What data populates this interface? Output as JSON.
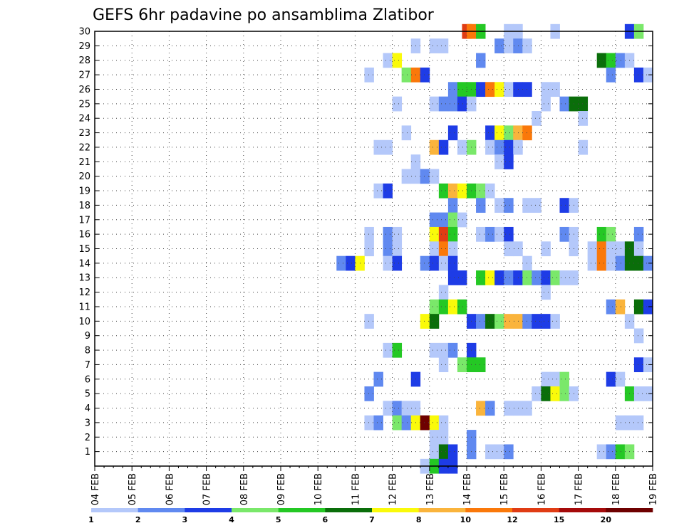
{
  "chart_data": {
    "type": "heatmap",
    "title": "GEFS 6hr padavine po ansamblima Zlatibor",
    "xlabel": "",
    "ylabel": "",
    "x_axis": {
      "start_day": 4,
      "end_day": 19,
      "tick_labels": [
        "04 FEB",
        "05 FEB",
        "06 FEB",
        "07 FEB",
        "08 FEB",
        "09 FEB",
        "10 FEB",
        "11 FEB",
        "12 FEB",
        "13 FEB",
        "14 FEB",
        "15 FEB",
        "16 FEB",
        "17 FEB",
        "18 FEB",
        "19 FEB"
      ],
      "grid": true
    },
    "y_axis": {
      "range": [
        0,
        30
      ],
      "tick_labels": [
        "1",
        "2",
        "3",
        "4",
        "5",
        "6",
        "7",
        "8",
        "9",
        "10",
        "11",
        "12",
        "13",
        "14",
        "15",
        "16",
        "17",
        "18",
        "19",
        "20",
        "21",
        "22",
        "23",
        "24",
        "25",
        "26",
        "27",
        "28",
        "29",
        "30"
      ],
      "grid": true
    },
    "color_scale": {
      "labels": [
        "1",
        "2",
        "3",
        "4",
        "5",
        "6",
        "7",
        "8",
        "10",
        "12",
        "15",
        "20"
      ],
      "colors": [
        "#b4c8fa",
        "#6089f0",
        "#1e3ce6",
        "#7ae86a",
        "#24c824",
        "#0a6e0a",
        "#fafa0a",
        "#fab43c",
        "#fa780a",
        "#e03c14",
        "#a50a0a",
        "#6e0000"
      ]
    },
    "cells": [
      {
        "y": 30,
        "x": 14.0,
        "level": 10
      },
      {
        "y": 30,
        "x": 14.125,
        "level": 9
      },
      {
        "y": 30,
        "x": 14.375,
        "level": 5
      },
      {
        "y": 30,
        "x": 15.125,
        "level": 1
      },
      {
        "y": 30,
        "x": 15.375,
        "level": 1
      },
      {
        "y": 30,
        "x": 16.375,
        "level": 1
      },
      {
        "y": 30,
        "x": 18.375,
        "level": 3
      },
      {
        "y": 30,
        "x": 18.625,
        "level": 4
      },
      {
        "y": 29,
        "x": 12.625,
        "level": 1
      },
      {
        "y": 29,
        "x": 13.125,
        "level": 1
      },
      {
        "y": 29,
        "x": 13.375,
        "level": 1
      },
      {
        "y": 29,
        "x": 14.875,
        "level": 2
      },
      {
        "y": 29,
        "x": 15.125,
        "level": 1
      },
      {
        "y": 29,
        "x": 15.375,
        "level": 2
      },
      {
        "y": 29,
        "x": 15.625,
        "level": 1
      },
      {
        "y": 28,
        "x": 11.875,
        "level": 1
      },
      {
        "y": 28,
        "x": 12.125,
        "level": 7
      },
      {
        "y": 28,
        "x": 14.375,
        "level": 2
      },
      {
        "y": 28,
        "x": 17.625,
        "level": 6
      },
      {
        "y": 28,
        "x": 17.875,
        "level": 5
      },
      {
        "y": 28,
        "x": 18.125,
        "level": 2
      },
      {
        "y": 28,
        "x": 18.375,
        "level": 1
      },
      {
        "y": 27,
        "x": 11.375,
        "level": 1
      },
      {
        "y": 27,
        "x": 12.375,
        "level": 4
      },
      {
        "y": 27,
        "x": 12.625,
        "level": 9
      },
      {
        "y": 27,
        "x": 12.875,
        "level": 3
      },
      {
        "y": 27,
        "x": 17.875,
        "level": 2
      },
      {
        "y": 27,
        "x": 18.625,
        "level": 3
      },
      {
        "y": 27,
        "x": 18.875,
        "level": 1
      },
      {
        "y": 26,
        "x": 13.625,
        "level": 2
      },
      {
        "y": 26,
        "x": 13.875,
        "level": 5
      },
      {
        "y": 26,
        "x": 14.125,
        "level": 5
      },
      {
        "y": 26,
        "x": 14.375,
        "level": 3
      },
      {
        "y": 26,
        "x": 14.625,
        "level": 9
      },
      {
        "y": 26,
        "x": 14.875,
        "level": 7
      },
      {
        "y": 26,
        "x": 15.125,
        "level": 1
      },
      {
        "y": 26,
        "x": 15.375,
        "level": 3
      },
      {
        "y": 26,
        "x": 15.625,
        "level": 3
      },
      {
        "y": 26,
        "x": 16.125,
        "level": 1
      },
      {
        "y": 26,
        "x": 16.375,
        "level": 1
      },
      {
        "y": 25,
        "x": 12.125,
        "level": 1
      },
      {
        "y": 25,
        "x": 13.125,
        "level": 1
      },
      {
        "y": 25,
        "x": 13.375,
        "level": 2
      },
      {
        "y": 25,
        "x": 13.625,
        "level": 2
      },
      {
        "y": 25,
        "x": 13.875,
        "level": 3
      },
      {
        "y": 25,
        "x": 14.125,
        "level": 1
      },
      {
        "y": 25,
        "x": 16.125,
        "level": 1
      },
      {
        "y": 25,
        "x": 16.625,
        "level": 2
      },
      {
        "y": 25,
        "x": 16.875,
        "level": 6
      },
      {
        "y": 25,
        "x": 17.125,
        "level": 6
      },
      {
        "y": 24,
        "x": 15.875,
        "level": 1
      },
      {
        "y": 24,
        "x": 17.125,
        "level": 1
      },
      {
        "y": 23,
        "x": 12.375,
        "level": 1
      },
      {
        "y": 23,
        "x": 13.625,
        "level": 3
      },
      {
        "y": 23,
        "x": 14.625,
        "level": 3
      },
      {
        "y": 23,
        "x": 14.875,
        "level": 7
      },
      {
        "y": 23,
        "x": 15.125,
        "level": 4
      },
      {
        "y": 23,
        "x": 15.375,
        "level": 8
      },
      {
        "y": 23,
        "x": 15.625,
        "level": 9
      },
      {
        "y": 22,
        "x": 11.625,
        "level": 1
      },
      {
        "y": 22,
        "x": 11.875,
        "level": 1
      },
      {
        "y": 22,
        "x": 13.125,
        "level": 8
      },
      {
        "y": 22,
        "x": 13.375,
        "level": 3
      },
      {
        "y": 22,
        "x": 13.875,
        "level": 1
      },
      {
        "y": 22,
        "x": 14.125,
        "level": 4
      },
      {
        "y": 22,
        "x": 14.625,
        "level": 1
      },
      {
        "y": 22,
        "x": 14.875,
        "level": 2
      },
      {
        "y": 22,
        "x": 15.125,
        "level": 3
      },
      {
        "y": 22,
        "x": 15.375,
        "level": 1
      },
      {
        "y": 22,
        "x": 17.125,
        "level": 1
      },
      {
        "y": 21,
        "x": 12.625,
        "level": 1
      },
      {
        "y": 21,
        "x": 14.875,
        "level": 1
      },
      {
        "y": 21,
        "x": 15.125,
        "level": 3
      },
      {
        "y": 20,
        "x": 12.375,
        "level": 1
      },
      {
        "y": 20,
        "x": 12.625,
        "level": 1
      },
      {
        "y": 20,
        "x": 12.875,
        "level": 2
      },
      {
        "y": 20,
        "x": 13.125,
        "level": 1
      },
      {
        "y": 19,
        "x": 11.625,
        "level": 1
      },
      {
        "y": 19,
        "x": 11.875,
        "level": 3
      },
      {
        "y": 19,
        "x": 13.375,
        "level": 5
      },
      {
        "y": 19,
        "x": 13.625,
        "level": 8
      },
      {
        "y": 19,
        "x": 13.875,
        "level": 7
      },
      {
        "y": 19,
        "x": 14.125,
        "level": 5
      },
      {
        "y": 19,
        "x": 14.375,
        "level": 4
      },
      {
        "y": 19,
        "x": 14.625,
        "level": 1
      },
      {
        "y": 18,
        "x": 13.625,
        "level": 2
      },
      {
        "y": 18,
        "x": 14.375,
        "level": 2
      },
      {
        "y": 18,
        "x": 14.875,
        "level": 1
      },
      {
        "y": 18,
        "x": 15.125,
        "level": 2
      },
      {
        "y": 18,
        "x": 15.625,
        "level": 1
      },
      {
        "y": 18,
        "x": 15.875,
        "level": 1
      },
      {
        "y": 18,
        "x": 16.625,
        "level": 3
      },
      {
        "y": 18,
        "x": 16.875,
        "level": 1
      },
      {
        "y": 17,
        "x": 13.125,
        "level": 2
      },
      {
        "y": 17,
        "x": 13.375,
        "level": 2
      },
      {
        "y": 17,
        "x": 13.625,
        "level": 4
      },
      {
        "y": 17,
        "x": 13.875,
        "level": 1
      },
      {
        "y": 16,
        "x": 11.375,
        "level": 1
      },
      {
        "y": 16,
        "x": 11.875,
        "level": 2
      },
      {
        "y": 16,
        "x": 12.125,
        "level": 1
      },
      {
        "y": 16,
        "x": 13.125,
        "level": 7
      },
      {
        "y": 16,
        "x": 13.375,
        "level": 10
      },
      {
        "y": 16,
        "x": 13.625,
        "level": 5
      },
      {
        "y": 16,
        "x": 14.375,
        "level": 1
      },
      {
        "y": 16,
        "x": 14.625,
        "level": 2
      },
      {
        "y": 16,
        "x": 14.875,
        "level": 1
      },
      {
        "y": 16,
        "x": 15.125,
        "level": 3
      },
      {
        "y": 16,
        "x": 16.625,
        "level": 2
      },
      {
        "y": 16,
        "x": 16.875,
        "level": 1
      },
      {
        "y": 16,
        "x": 17.625,
        "level": 5
      },
      {
        "y": 16,
        "x": 17.875,
        "level": 4
      },
      {
        "y": 16,
        "x": 18.625,
        "level": 2
      },
      {
        "y": 15,
        "x": 11.375,
        "level": 1
      },
      {
        "y": 15,
        "x": 11.875,
        "level": 2
      },
      {
        "y": 15,
        "x": 12.125,
        "level": 1
      },
      {
        "y": 15,
        "x": 13.125,
        "level": 1
      },
      {
        "y": 15,
        "x": 13.375,
        "level": 9
      },
      {
        "y": 15,
        "x": 13.625,
        "level": 1
      },
      {
        "y": 15,
        "x": 15.125,
        "level": 1
      },
      {
        "y": 15,
        "x": 15.375,
        "level": 1
      },
      {
        "y": 15,
        "x": 16.125,
        "level": 1
      },
      {
        "y": 15,
        "x": 16.875,
        "level": 1
      },
      {
        "y": 15,
        "x": 17.375,
        "level": 1
      },
      {
        "y": 15,
        "x": 17.625,
        "level": 9
      },
      {
        "y": 15,
        "x": 17.875,
        "level": 1
      },
      {
        "y": 15,
        "x": 18.125,
        "level": 1
      },
      {
        "y": 15,
        "x": 18.375,
        "level": 6
      },
      {
        "y": 15,
        "x": 18.625,
        "level": 1
      },
      {
        "y": 14,
        "x": 10.625,
        "level": 2
      },
      {
        "y": 14,
        "x": 10.875,
        "level": 3
      },
      {
        "y": 14,
        "x": 11.125,
        "level": 7
      },
      {
        "y": 14,
        "x": 11.875,
        "level": 1
      },
      {
        "y": 14,
        "x": 12.125,
        "level": 3
      },
      {
        "y": 14,
        "x": 12.875,
        "level": 2
      },
      {
        "y": 14,
        "x": 13.125,
        "level": 3
      },
      {
        "y": 14,
        "x": 13.375,
        "level": 1
      },
      {
        "y": 14,
        "x": 13.625,
        "level": 3
      },
      {
        "y": 14,
        "x": 15.625,
        "level": 1
      },
      {
        "y": 14,
        "x": 17.375,
        "level": 1
      },
      {
        "y": 14,
        "x": 17.625,
        "level": 9
      },
      {
        "y": 14,
        "x": 17.875,
        "level": 1
      },
      {
        "y": 14,
        "x": 18.125,
        "level": 2
      },
      {
        "y": 14,
        "x": 18.375,
        "level": 6
      },
      {
        "y": 14,
        "x": 18.625,
        "level": 6
      },
      {
        "y": 14,
        "x": 18.875,
        "level": 2
      },
      {
        "y": 13,
        "x": 13.625,
        "level": 3
      },
      {
        "y": 13,
        "x": 13.875,
        "level": 3
      },
      {
        "y": 13,
        "x": 14.375,
        "level": 5
      },
      {
        "y": 13,
        "x": 14.625,
        "level": 7
      },
      {
        "y": 13,
        "x": 14.875,
        "level": 3
      },
      {
        "y": 13,
        "x": 15.125,
        "level": 2
      },
      {
        "y": 13,
        "x": 15.375,
        "level": 3
      },
      {
        "y": 13,
        "x": 15.625,
        "level": 4
      },
      {
        "y": 13,
        "x": 15.875,
        "level": 2
      },
      {
        "y": 13,
        "x": 16.125,
        "level": 3
      },
      {
        "y": 13,
        "x": 16.375,
        "level": 4
      },
      {
        "y": 13,
        "x": 16.625,
        "level": 1
      },
      {
        "y": 13,
        "x": 16.875,
        "level": 1
      },
      {
        "y": 12,
        "x": 13.375,
        "level": 1
      },
      {
        "y": 12,
        "x": 16.125,
        "level": 1
      },
      {
        "y": 11,
        "x": 13.125,
        "level": 4
      },
      {
        "y": 11,
        "x": 13.375,
        "level": 5
      },
      {
        "y": 11,
        "x": 13.625,
        "level": 7
      },
      {
        "y": 11,
        "x": 13.875,
        "level": 5
      },
      {
        "y": 11,
        "x": 17.875,
        "level": 2
      },
      {
        "y": 11,
        "x": 18.125,
        "level": 8
      },
      {
        "y": 11,
        "x": 18.625,
        "level": 6
      },
      {
        "y": 11,
        "x": 18.875,
        "level": 3
      },
      {
        "y": 10,
        "x": 11.375,
        "level": 1
      },
      {
        "y": 10,
        "x": 12.875,
        "level": 7
      },
      {
        "y": 10,
        "x": 13.125,
        "level": 6
      },
      {
        "y": 10,
        "x": 14.125,
        "level": 3
      },
      {
        "y": 10,
        "x": 14.375,
        "level": 2
      },
      {
        "y": 10,
        "x": 14.625,
        "level": 6
      },
      {
        "y": 10,
        "x": 14.875,
        "level": 4
      },
      {
        "y": 10,
        "x": 15.125,
        "level": 8
      },
      {
        "y": 10,
        "x": 15.375,
        "level": 8
      },
      {
        "y": 10,
        "x": 15.625,
        "level": 2
      },
      {
        "y": 10,
        "x": 15.875,
        "level": 3
      },
      {
        "y": 10,
        "x": 16.125,
        "level": 3
      },
      {
        "y": 10,
        "x": 16.375,
        "level": 1
      },
      {
        "y": 10,
        "x": 18.375,
        "level": 1
      },
      {
        "y": 9,
        "x": 18.625,
        "level": 1
      },
      {
        "y": 8,
        "x": 11.875,
        "level": 1
      },
      {
        "y": 8,
        "x": 12.125,
        "level": 5
      },
      {
        "y": 8,
        "x": 13.125,
        "level": 1
      },
      {
        "y": 8,
        "x": 13.375,
        "level": 1
      },
      {
        "y": 8,
        "x": 13.625,
        "level": 2
      },
      {
        "y": 8,
        "x": 14.125,
        "level": 3
      },
      {
        "y": 7,
        "x": 13.375,
        "level": 1
      },
      {
        "y": 7,
        "x": 13.875,
        "level": 4
      },
      {
        "y": 7,
        "x": 14.125,
        "level": 5
      },
      {
        "y": 7,
        "x": 14.375,
        "level": 5
      },
      {
        "y": 7,
        "x": 18.625,
        "level": 3
      },
      {
        "y": 7,
        "x": 18.875,
        "level": 1
      },
      {
        "y": 6,
        "x": 11.625,
        "level": 2
      },
      {
        "y": 6,
        "x": 12.625,
        "level": 3
      },
      {
        "y": 6,
        "x": 16.125,
        "level": 1
      },
      {
        "y": 6,
        "x": 16.375,
        "level": 1
      },
      {
        "y": 6,
        "x": 16.625,
        "level": 4
      },
      {
        "y": 6,
        "x": 17.875,
        "level": 3
      },
      {
        "y": 6,
        "x": 18.125,
        "level": 1
      },
      {
        "y": 5,
        "x": 11.375,
        "level": 2
      },
      {
        "y": 5,
        "x": 15.875,
        "level": 1
      },
      {
        "y": 5,
        "x": 16.125,
        "level": 6
      },
      {
        "y": 5,
        "x": 16.375,
        "level": 7
      },
      {
        "y": 5,
        "x": 16.625,
        "level": 4
      },
      {
        "y": 5,
        "x": 16.875,
        "level": 1
      },
      {
        "y": 5,
        "x": 18.375,
        "level": 5
      },
      {
        "y": 5,
        "x": 18.625,
        "level": 1
      },
      {
        "y": 5,
        "x": 18.875,
        "level": 1
      },
      {
        "y": 4,
        "x": 11.875,
        "level": 1
      },
      {
        "y": 4,
        "x": 12.125,
        "level": 2
      },
      {
        "y": 4,
        "x": 12.375,
        "level": 1
      },
      {
        "y": 4,
        "x": 12.625,
        "level": 1
      },
      {
        "y": 4,
        "x": 14.375,
        "level": 8
      },
      {
        "y": 4,
        "x": 14.625,
        "level": 2
      },
      {
        "y": 4,
        "x": 15.125,
        "level": 1
      },
      {
        "y": 4,
        "x": 15.375,
        "level": 1
      },
      {
        "y": 4,
        "x": 15.625,
        "level": 1
      },
      {
        "y": 3,
        "x": 11.375,
        "level": 1
      },
      {
        "y": 3,
        "x": 11.625,
        "level": 2
      },
      {
        "y": 3,
        "x": 12.125,
        "level": 4
      },
      {
        "y": 3,
        "x": 12.375,
        "level": 2
      },
      {
        "y": 3,
        "x": 12.625,
        "level": 7
      },
      {
        "y": 3,
        "x": 12.875,
        "level": 12
      },
      {
        "y": 3,
        "x": 13.125,
        "level": 7
      },
      {
        "y": 3,
        "x": 13.375,
        "level": 1
      },
      {
        "y": 3,
        "x": 18.125,
        "level": 1
      },
      {
        "y": 3,
        "x": 18.375,
        "level": 1
      },
      {
        "y": 3,
        "x": 18.625,
        "level": 1
      },
      {
        "y": 2,
        "x": 13.125,
        "level": 1
      },
      {
        "y": 2,
        "x": 13.375,
        "level": 1
      },
      {
        "y": 2,
        "x": 14.125,
        "level": 2
      },
      {
        "y": 1,
        "x": 13.125,
        "level": 1
      },
      {
        "y": 1,
        "x": 13.375,
        "level": 6
      },
      {
        "y": 1,
        "x": 13.625,
        "level": 3
      },
      {
        "y": 1,
        "x": 14.125,
        "level": 2
      },
      {
        "y": 1,
        "x": 14.625,
        "level": 1
      },
      {
        "y": 1,
        "x": 14.875,
        "level": 1
      },
      {
        "y": 1,
        "x": 15.125,
        "level": 2
      },
      {
        "y": 1,
        "x": 17.625,
        "level": 1
      },
      {
        "y": 1,
        "x": 17.875,
        "level": 2
      },
      {
        "y": 1,
        "x": 18.125,
        "level": 5
      },
      {
        "y": 1,
        "x": 18.375,
        "level": 4
      },
      {
        "y": 0,
        "x": 12.875,
        "level": 1
      },
      {
        "y": 0,
        "x": 13.125,
        "level": 5
      },
      {
        "y": 0,
        "x": 13.375,
        "level": 3
      },
      {
        "y": 0,
        "x": 13.625,
        "level": 3
      }
    ]
  }
}
